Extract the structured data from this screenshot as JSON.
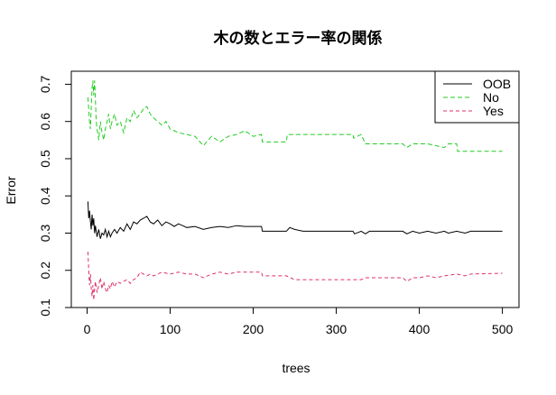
{
  "chart_data": {
    "type": "line",
    "title": "木の数とエラー率の関係",
    "xlabel": "trees",
    "ylabel": "Error",
    "xlim": [
      1,
      500
    ],
    "ylim": [
      0.1,
      0.72
    ],
    "x_ticks": [
      0,
      100,
      200,
      300,
      400,
      500
    ],
    "y_ticks": [
      0.1,
      0.2,
      0.3,
      0.4,
      0.5,
      0.6,
      0.7
    ],
    "legend_position": "top-right",
    "series": [
      {
        "name": "OOB",
        "color": "#000000",
        "dash": "solid",
        "points": [
          [
            1,
            0.385
          ],
          [
            2,
            0.34
          ],
          [
            3,
            0.36
          ],
          [
            4,
            0.33
          ],
          [
            5,
            0.31
          ],
          [
            6,
            0.35
          ],
          [
            7,
            0.32
          ],
          [
            8,
            0.34
          ],
          [
            9,
            0.3
          ],
          [
            10,
            0.32
          ],
          [
            12,
            0.29
          ],
          [
            14,
            0.31
          ],
          [
            16,
            0.285
          ],
          [
            18,
            0.3
          ],
          [
            20,
            0.295
          ],
          [
            22,
            0.31
          ],
          [
            24,
            0.29
          ],
          [
            26,
            0.305
          ],
          [
            28,
            0.29
          ],
          [
            30,
            0.3
          ],
          [
            33,
            0.31
          ],
          [
            36,
            0.3
          ],
          [
            40,
            0.315
          ],
          [
            44,
            0.305
          ],
          [
            48,
            0.325
          ],
          [
            52,
            0.31
          ],
          [
            56,
            0.33
          ],
          [
            60,
            0.325
          ],
          [
            64,
            0.335
          ],
          [
            68,
            0.34
          ],
          [
            72,
            0.345
          ],
          [
            76,
            0.33
          ],
          [
            80,
            0.325
          ],
          [
            85,
            0.335
          ],
          [
            90,
            0.32
          ],
          [
            95,
            0.33
          ],
          [
            100,
            0.325
          ],
          [
            105,
            0.318
          ],
          [
            110,
            0.325
          ],
          [
            115,
            0.32
          ],
          [
            120,
            0.315
          ],
          [
            130,
            0.318
          ],
          [
            140,
            0.31
          ],
          [
            150,
            0.315
          ],
          [
            160,
            0.318
          ],
          [
            170,
            0.315
          ],
          [
            180,
            0.32
          ],
          [
            190,
            0.318
          ],
          [
            200,
            0.318
          ],
          [
            210,
            0.318
          ],
          [
            211,
            0.305
          ],
          [
            240,
            0.305
          ],
          [
            244,
            0.315
          ],
          [
            250,
            0.31
          ],
          [
            260,
            0.305
          ],
          [
            300,
            0.305
          ],
          [
            320,
            0.305
          ],
          [
            322,
            0.298
          ],
          [
            330,
            0.305
          ],
          [
            335,
            0.298
          ],
          [
            340,
            0.305
          ],
          [
            380,
            0.305
          ],
          [
            385,
            0.298
          ],
          [
            392,
            0.305
          ],
          [
            400,
            0.3
          ],
          [
            410,
            0.305
          ],
          [
            420,
            0.3
          ],
          [
            430,
            0.305
          ],
          [
            435,
            0.3
          ],
          [
            445,
            0.305
          ],
          [
            455,
            0.3
          ],
          [
            462,
            0.305
          ],
          [
            500,
            0.305
          ]
        ]
      },
      {
        "name": "No",
        "color": "#22cc22",
        "dash": "5,3",
        "points": [
          [
            1,
            0.665
          ],
          [
            3,
            0.6
          ],
          [
            4,
            0.58
          ],
          [
            5,
            0.64
          ],
          [
            6,
            0.69
          ],
          [
            7,
            0.71
          ],
          [
            8,
            0.67
          ],
          [
            9,
            0.71
          ],
          [
            10,
            0.66
          ],
          [
            11,
            0.6
          ],
          [
            12,
            0.58
          ],
          [
            14,
            0.55
          ],
          [
            16,
            0.6
          ],
          [
            18,
            0.57
          ],
          [
            20,
            0.55
          ],
          [
            22,
            0.58
          ],
          [
            24,
            0.6
          ],
          [
            26,
            0.62
          ],
          [
            28,
            0.58
          ],
          [
            30,
            0.6
          ],
          [
            33,
            0.62
          ],
          [
            36,
            0.59
          ],
          [
            40,
            0.6
          ],
          [
            44,
            0.57
          ],
          [
            48,
            0.61
          ],
          [
            52,
            0.6
          ],
          [
            56,
            0.63
          ],
          [
            60,
            0.61
          ],
          [
            64,
            0.62
          ],
          [
            68,
            0.635
          ],
          [
            72,
            0.64
          ],
          [
            76,
            0.62
          ],
          [
            80,
            0.61
          ],
          [
            85,
            0.6
          ],
          [
            90,
            0.59
          ],
          [
            95,
            0.6
          ],
          [
            100,
            0.58
          ],
          [
            105,
            0.575
          ],
          [
            110,
            0.57
          ],
          [
            120,
            0.565
          ],
          [
            130,
            0.56
          ],
          [
            140,
            0.535
          ],
          [
            150,
            0.56
          ],
          [
            160,
            0.545
          ],
          [
            170,
            0.56
          ],
          [
            180,
            0.565
          ],
          [
            190,
            0.575
          ],
          [
            200,
            0.56
          ],
          [
            210,
            0.565
          ],
          [
            211,
            0.545
          ],
          [
            240,
            0.545
          ],
          [
            241,
            0.565
          ],
          [
            320,
            0.565
          ],
          [
            321,
            0.555
          ],
          [
            330,
            0.565
          ],
          [
            335,
            0.54
          ],
          [
            380,
            0.54
          ],
          [
            385,
            0.53
          ],
          [
            392,
            0.54
          ],
          [
            400,
            0.54
          ],
          [
            410,
            0.54
          ],
          [
            420,
            0.535
          ],
          [
            430,
            0.53
          ],
          [
            435,
            0.54
          ],
          [
            445,
            0.54
          ],
          [
            446,
            0.52
          ],
          [
            500,
            0.52
          ]
        ]
      },
      {
        "name": "Yes",
        "color": "#dd3366",
        "dash": "4,3",
        "points": [
          [
            1,
            0.25
          ],
          [
            2,
            0.2
          ],
          [
            3,
            0.16
          ],
          [
            4,
            0.19
          ],
          [
            5,
            0.15
          ],
          [
            6,
            0.13
          ],
          [
            7,
            0.16
          ],
          [
            8,
            0.12
          ],
          [
            9,
            0.15
          ],
          [
            10,
            0.17
          ],
          [
            12,
            0.14
          ],
          [
            14,
            0.16
          ],
          [
            16,
            0.18
          ],
          [
            18,
            0.15
          ],
          [
            20,
            0.17
          ],
          [
            22,
            0.15
          ],
          [
            24,
            0.14
          ],
          [
            26,
            0.16
          ],
          [
            28,
            0.15
          ],
          [
            30,
            0.17
          ],
          [
            33,
            0.155
          ],
          [
            36,
            0.17
          ],
          [
            40,
            0.165
          ],
          [
            44,
            0.17
          ],
          [
            48,
            0.175
          ],
          [
            52,
            0.165
          ],
          [
            56,
            0.175
          ],
          [
            60,
            0.18
          ],
          [
            64,
            0.195
          ],
          [
            68,
            0.19
          ],
          [
            72,
            0.185
          ],
          [
            76,
            0.19
          ],
          [
            80,
            0.185
          ],
          [
            85,
            0.19
          ],
          [
            90,
            0.195
          ],
          [
            100,
            0.19
          ],
          [
            110,
            0.195
          ],
          [
            120,
            0.19
          ],
          [
            130,
            0.19
          ],
          [
            140,
            0.18
          ],
          [
            150,
            0.19
          ],
          [
            160,
            0.195
          ],
          [
            170,
            0.19
          ],
          [
            180,
            0.195
          ],
          [
            190,
            0.195
          ],
          [
            210,
            0.195
          ],
          [
            211,
            0.185
          ],
          [
            240,
            0.185
          ],
          [
            250,
            0.175
          ],
          [
            300,
            0.175
          ],
          [
            320,
            0.175
          ],
          [
            330,
            0.175
          ],
          [
            335,
            0.18
          ],
          [
            380,
            0.18
          ],
          [
            385,
            0.17
          ],
          [
            392,
            0.18
          ],
          [
            400,
            0.18
          ],
          [
            410,
            0.185
          ],
          [
            420,
            0.18
          ],
          [
            430,
            0.185
          ],
          [
            445,
            0.19
          ],
          [
            455,
            0.185
          ],
          [
            462,
            0.19
          ],
          [
            500,
            0.192
          ]
        ]
      }
    ]
  }
}
